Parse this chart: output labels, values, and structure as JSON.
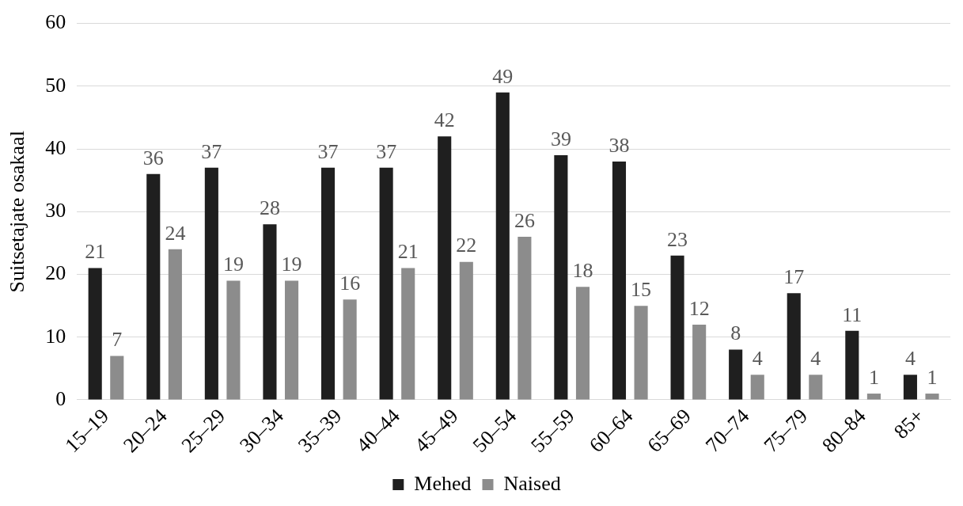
{
  "chart_data": {
    "type": "bar",
    "ylabel": "Suitsetajate osakaal",
    "categories": [
      "15–19",
      "20–24",
      "25–29",
      "30–34",
      "35–39",
      "40–44",
      "45–49",
      "50–54",
      "55–59",
      "60–64",
      "65–69",
      "70–74",
      "75–79",
      "80–84",
      "85+"
    ],
    "series": [
      {
        "name": "Mehed",
        "color": "#1f1f1f",
        "values": [
          21,
          36,
          37,
          28,
          37,
          37,
          42,
          49,
          39,
          38,
          23,
          8,
          17,
          11,
          4
        ]
      },
      {
        "name": "Naised",
        "color": "#8c8c8c",
        "values": [
          7,
          24,
          19,
          19,
          16,
          21,
          22,
          26,
          18,
          15,
          12,
          4,
          4,
          1,
          1
        ]
      }
    ],
    "ylim": [
      0,
      60
    ],
    "yticks": [
      0,
      10,
      20,
      30,
      40,
      50,
      60
    ],
    "grid": "y",
    "legend": "bottom",
    "data_labels": true
  }
}
